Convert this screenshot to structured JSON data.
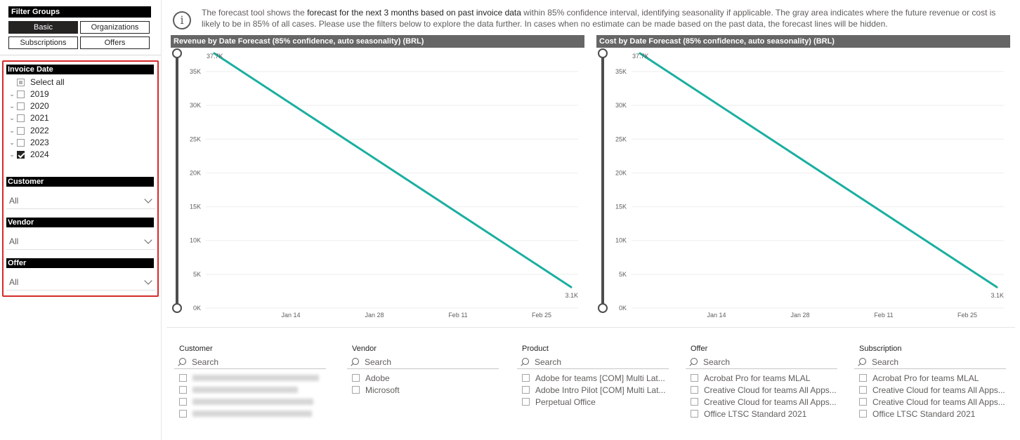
{
  "filter_groups": {
    "title": "Filter Groups",
    "buttons": [
      "Basic",
      "Organizations",
      "Subscriptions",
      "Offers"
    ],
    "active": "Basic"
  },
  "invoice_date": {
    "title": "Invoice Date",
    "select_all": "Select all",
    "years": [
      {
        "label": "2019",
        "checked": false
      },
      {
        "label": "2020",
        "checked": false
      },
      {
        "label": "2021",
        "checked": false
      },
      {
        "label": "2022",
        "checked": false
      },
      {
        "label": "2023",
        "checked": false
      },
      {
        "label": "2024",
        "checked": true
      }
    ]
  },
  "customer_filter": {
    "title": "Customer",
    "value": "All"
  },
  "vendor_filter": {
    "title": "Vendor",
    "value": "All"
  },
  "offer_filter": {
    "title": "Offer",
    "value": "All"
  },
  "info": {
    "p1": "The forecast tool shows the ",
    "p2": "forecast for the next 3 months based on past invoice data",
    "p3": " within 85% confidence interval, identifying seasonality if applicable. The gray area indicates where the future revenue or cost is likely to be in 85% of all cases. Please use the filters below to explore the data further. In cases when no estimate can be made based on the past data, the forecast lines will be hidden."
  },
  "chart_data": [
    {
      "type": "line",
      "title": "Revenue by Date Forecast (85% confidence, auto seasonality) (BRL)",
      "x_ticks": [
        "Jan 14",
        "Jan 28",
        "Feb 11",
        "Feb 25"
      ],
      "y_ticks": [
        "0K",
        "5K",
        "10K",
        "15K",
        "20K",
        "25K",
        "30K",
        "35K"
      ],
      "ylim": [
        0,
        37700
      ],
      "series": [
        {
          "points": [
            37700,
            3100
          ],
          "start_label": "37.7K",
          "end_label": "3.1K",
          "color": "#1aafa0"
        }
      ]
    },
    {
      "type": "line",
      "title": "Cost by Date Forecast (85% confidence, auto seasonality) (BRL)",
      "x_ticks": [
        "Jan 14",
        "Jan 28",
        "Feb 11",
        "Feb 25"
      ],
      "y_ticks": [
        "0K",
        "5K",
        "10K",
        "15K",
        "20K",
        "25K",
        "30K",
        "35K"
      ],
      "ylim": [
        0,
        37700
      ],
      "series": [
        {
          "points": [
            37700,
            3100
          ],
          "start_label": "37.7K",
          "end_label": "3.1K",
          "color": "#1aafa0"
        }
      ]
    }
  ],
  "bottom_slicers": [
    {
      "title": "Customer",
      "search_placeholder": "Search",
      "items": [],
      "redacted_count": 4
    },
    {
      "title": "Vendor",
      "search_placeholder": "Search",
      "items": [
        "Adobe",
        "Microsoft"
      ]
    },
    {
      "title": "Product",
      "search_placeholder": "Search",
      "items": [
        "Adobe for teams [COM] Multi Lat...",
        "Adobe Intro Pilot [COM] Multi Lat...",
        "Perpetual Office"
      ]
    },
    {
      "title": "Offer",
      "search_placeholder": "Search",
      "items": [
        "Acrobat Pro for teams MLAL",
        "Creative Cloud for teams All Apps...",
        "Creative Cloud for teams All Apps...",
        "Office LTSC Standard 2021"
      ]
    },
    {
      "title": "Subscription",
      "search_placeholder": "Search",
      "items": [
        "Acrobat Pro for teams MLAL",
        "Creative Cloud for teams All Apps...",
        "Creative Cloud for teams All Apps...",
        "Office LTSC Standard 2021"
      ]
    }
  ]
}
